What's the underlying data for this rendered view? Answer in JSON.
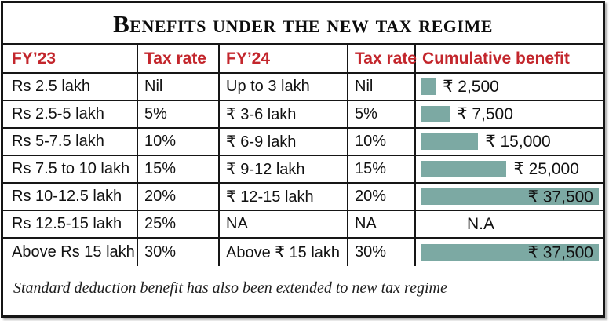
{
  "title": "Benefits under the new tax regime",
  "columns": [
    "FY’23",
    "Tax rate",
    "FY’24",
    "Tax rate",
    "Cumulative benefit"
  ],
  "rows": [
    {
      "fy23": "Rs 2.5 lakh",
      "tax_rate_fy23": "Nil",
      "fy24": "Up to 3 lakh",
      "tax_rate_fy24": "Nil",
      "benefit": "₹ 2,500",
      "bar_pct": 8,
      "label_inside": false
    },
    {
      "fy23": "Rs 2.5-5 lakh",
      "tax_rate_fy23": "5%",
      "fy24": "₹ 3-6 lakh",
      "tax_rate_fy24": "5%",
      "benefit": "₹ 7,500",
      "bar_pct": 16,
      "label_inside": false
    },
    {
      "fy23": "Rs 5-7.5 lakh",
      "tax_rate_fy23": "10%",
      "fy24": "₹ 6-9 lakh",
      "tax_rate_fy24": "10%",
      "benefit": "₹ 15,000",
      "bar_pct": 32,
      "label_inside": false
    },
    {
      "fy23": "Rs 7.5 to 10 lakh",
      "tax_rate_fy23": "15%",
      "fy24": "₹ 9-12 lakh",
      "tax_rate_fy24": "15%",
      "benefit": "₹ 25,000",
      "bar_pct": 48,
      "label_inside": false
    },
    {
      "fy23": "Rs 10-12.5 lakh",
      "tax_rate_fy23": "20%",
      "fy24": "₹ 12-15 lakh",
      "tax_rate_fy24": "20%",
      "benefit": "₹ 37,500",
      "bar_pct": 100,
      "label_inside": true
    },
    {
      "fy23": "Rs 12.5-15 lakh",
      "tax_rate_fy23": "25%",
      "fy24": "NA",
      "tax_rate_fy24": "NA",
      "benefit": "N.A",
      "bar_pct": 0,
      "label_inside": false
    },
    {
      "fy23": "Above Rs 15 lakh",
      "tax_rate_fy23": "30%",
      "fy24": "Above ₹ 15 lakh",
      "tax_rate_fy24": "30%",
      "benefit": "₹ 37,500",
      "bar_pct": 100,
      "label_inside": true
    }
  ],
  "footnote": "Standard deduction benefit has also been extended to new tax regime",
  "colors": {
    "accent_red": "#c3262c",
    "bar_teal": "#7ca9a3"
  },
  "chart_data": {
    "type": "table",
    "title": "Benefits under the new tax regime",
    "columns": [
      "FY'23",
      "Tax rate",
      "FY'24",
      "Tax rate",
      "Cumulative benefit"
    ],
    "rows": [
      [
        "Rs 2.5 lakh",
        "Nil",
        "Up to 3 lakh",
        "Nil",
        "₹ 2,500"
      ],
      [
        "Rs 2.5-5 lakh",
        "5%",
        "₹ 3-6 lakh",
        "5%",
        "₹ 7,500"
      ],
      [
        "Rs 5-7.5 lakh",
        "10%",
        "₹ 6-9 lakh",
        "10%",
        "₹ 15,000"
      ],
      [
        "Rs 7.5 to 10 lakh",
        "15%",
        "₹ 9-12 lakh",
        "15%",
        "₹ 25,000"
      ],
      [
        "Rs 10-12.5 lakh",
        "20%",
        "₹ 12-15 lakh",
        "20%",
        "₹ 37,500"
      ],
      [
        "Rs 12.5-15 lakh",
        "25%",
        "NA",
        "NA",
        "N.A"
      ],
      [
        "Above Rs 15 lakh",
        "30%",
        "Above ₹ 15 lakh",
        "30%",
        "₹ 37,500"
      ]
    ],
    "embedded_bars": {
      "column": "Cumulative benefit",
      "type": "bar",
      "values": [
        2500,
        7500,
        15000,
        25000,
        37500,
        null,
        37500
      ],
      "max": 37500,
      "bar_color": "#7ca9a3"
    },
    "footnote": "Standard deduction benefit has also been extended to new tax regime"
  }
}
